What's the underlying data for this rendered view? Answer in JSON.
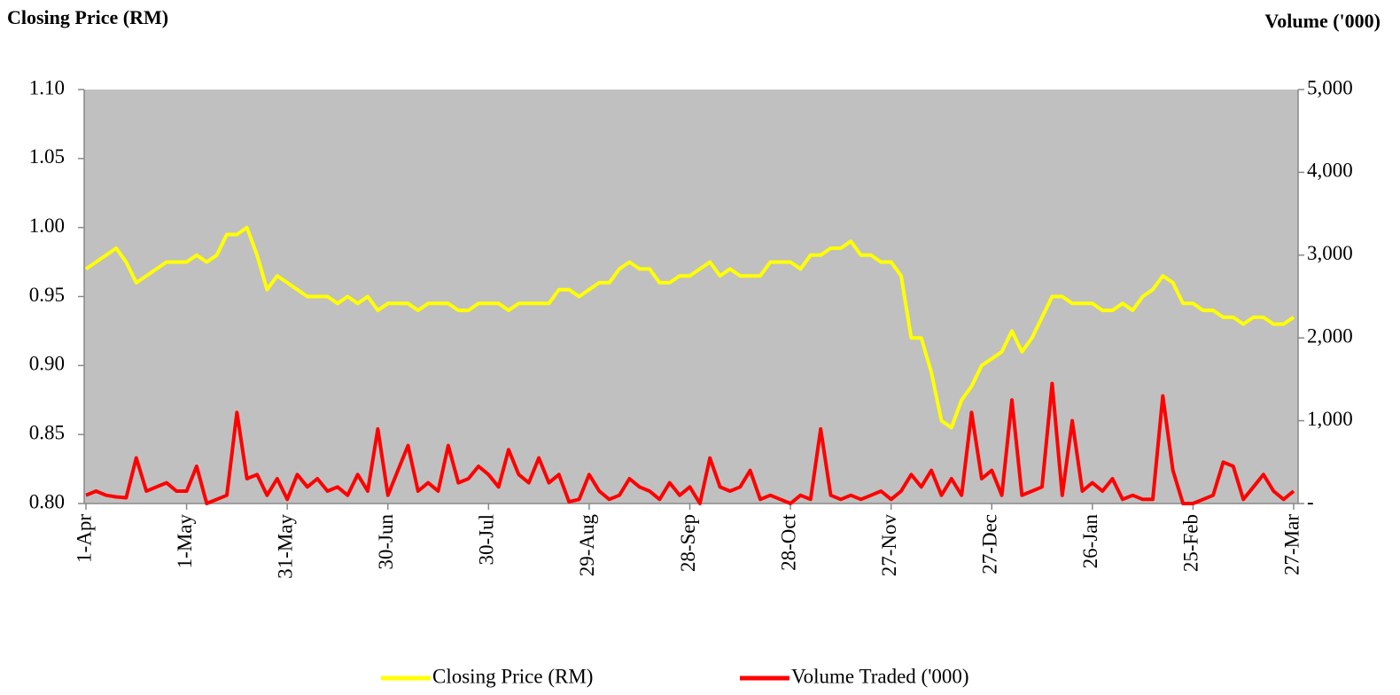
{
  "chart_data": {
    "type": "line",
    "y_axis_label": "Closing Price (RM)",
    "y2_axis_label": "Volume ('000)",
    "categories": [
      "1-Apr",
      null,
      null,
      null,
      null,
      null,
      null,
      null,
      null,
      null,
      "1-May",
      null,
      null,
      null,
      null,
      null,
      null,
      null,
      null,
      null,
      "31-May",
      null,
      null,
      null,
      null,
      null,
      null,
      null,
      null,
      null,
      "30-Jun",
      null,
      null,
      null,
      null,
      null,
      null,
      null,
      null,
      null,
      "30-Jul",
      null,
      null,
      null,
      null,
      null,
      null,
      null,
      null,
      null,
      "29-Aug",
      null,
      null,
      null,
      null,
      null,
      null,
      null,
      null,
      null,
      "28-Sep",
      null,
      null,
      null,
      null,
      null,
      null,
      null,
      null,
      null,
      "28-Oct",
      null,
      null,
      null,
      null,
      null,
      null,
      null,
      null,
      null,
      "27-Nov",
      null,
      null,
      null,
      null,
      null,
      null,
      null,
      null,
      null,
      "27-Dec",
      null,
      null,
      null,
      null,
      null,
      null,
      null,
      null,
      null,
      "26-Jan",
      null,
      null,
      null,
      null,
      null,
      null,
      null,
      null,
      null,
      "25-Feb",
      null,
      null,
      null,
      null,
      null,
      null,
      null,
      null,
      null,
      "27-Mar"
    ],
    "series": [
      {
        "name": "Closing Price (RM)",
        "color": "#ffff00",
        "axis": "y",
        "values": [
          0.97,
          0.975,
          0.98,
          0.985,
          0.975,
          0.96,
          0.965,
          0.97,
          0.975,
          0.975,
          0.975,
          0.98,
          0.975,
          0.98,
          0.995,
          0.995,
          1.0,
          0.98,
          0.955,
          0.965,
          0.96,
          0.955,
          0.95,
          0.95,
          0.95,
          0.945,
          0.95,
          0.945,
          0.95,
          0.94,
          0.945,
          0.945,
          0.945,
          0.94,
          0.945,
          0.945,
          0.945,
          0.94,
          0.94,
          0.945,
          0.945,
          0.945,
          0.94,
          0.945,
          0.945,
          0.945,
          0.945,
          0.955,
          0.955,
          0.95,
          0.955,
          0.96,
          0.96,
          0.97,
          0.975,
          0.97,
          0.97,
          0.96,
          0.96,
          0.965,
          0.965,
          0.97,
          0.975,
          0.965,
          0.97,
          0.965,
          0.965,
          0.965,
          0.975,
          0.975,
          0.975,
          0.97,
          0.98,
          0.98,
          0.985,
          0.985,
          0.99,
          0.98,
          0.98,
          0.975,
          0.975,
          0.965,
          0.92,
          0.92,
          0.895,
          0.86,
          0.855,
          0.875,
          0.885,
          0.9,
          0.905,
          0.91,
          0.925,
          0.91,
          0.92,
          0.935,
          0.95,
          0.95,
          0.945,
          0.945,
          0.945,
          0.94,
          0.94,
          0.945,
          0.94,
          0.95,
          0.955,
          0.965,
          0.96,
          0.945,
          0.945,
          0.94,
          0.94,
          0.935,
          0.935,
          0.93,
          0.935,
          0.935,
          0.93,
          0.93,
          0.935
        ]
      },
      {
        "name": "Volume Traded ('000)",
        "color": "#ff0000",
        "axis": "y2",
        "values": [
          100,
          150,
          100,
          80,
          70,
          550,
          150,
          200,
          250,
          150,
          150,
          450,
          0,
          50,
          100,
          1100,
          300,
          350,
          100,
          300,
          50,
          350,
          200,
          300,
          150,
          200,
          100,
          350,
          150,
          900,
          100,
          400,
          700,
          150,
          250,
          150,
          700,
          250,
          300,
          450,
          350,
          200,
          650,
          350,
          250,
          550,
          250,
          350,
          20,
          50,
          350,
          150,
          50,
          100,
          300,
          200,
          150,
          50,
          250,
          100,
          200,
          0,
          550,
          200,
          150,
          200,
          400,
          50,
          100,
          50,
          0,
          100,
          50,
          900,
          100,
          50,
          100,
          50,
          100,
          150,
          50,
          150,
          350,
          200,
          400,
          100,
          300,
          100,
          1100,
          300,
          400,
          100,
          1250,
          100,
          150,
          200,
          1450,
          100,
          1000,
          150,
          250,
          150,
          300,
          50,
          100,
          50,
          50,
          1300,
          400,
          0,
          0,
          50,
          100,
          500,
          450,
          50,
          200,
          350,
          150,
          50,
          150
        ]
      }
    ],
    "ylim": [
      0.8,
      1.1
    ],
    "yticks": [
      {
        "value": 0.8,
        "label": "0.80"
      },
      {
        "value": 0.85,
        "label": "0.85"
      },
      {
        "value": 0.9,
        "label": "0.90"
      },
      {
        "value": 0.95,
        "label": "0.95"
      },
      {
        "value": 1.0,
        "label": "1.00"
      },
      {
        "value": 1.05,
        "label": "1.05"
      },
      {
        "value": 1.1,
        "label": "1.10"
      }
    ],
    "y2lim": [
      0,
      5000
    ],
    "y2ticks": [
      {
        "value": 0,
        "label": "-"
      },
      {
        "value": 1000,
        "label": "1,000"
      },
      {
        "value": 2000,
        "label": "2,000"
      },
      {
        "value": 3000,
        "label": "3,000"
      },
      {
        "value": 4000,
        "label": "4,000"
      },
      {
        "value": 5000,
        "label": "5,000"
      }
    ],
    "plot_background": "#c0c0c0",
    "legend": "bottom"
  }
}
